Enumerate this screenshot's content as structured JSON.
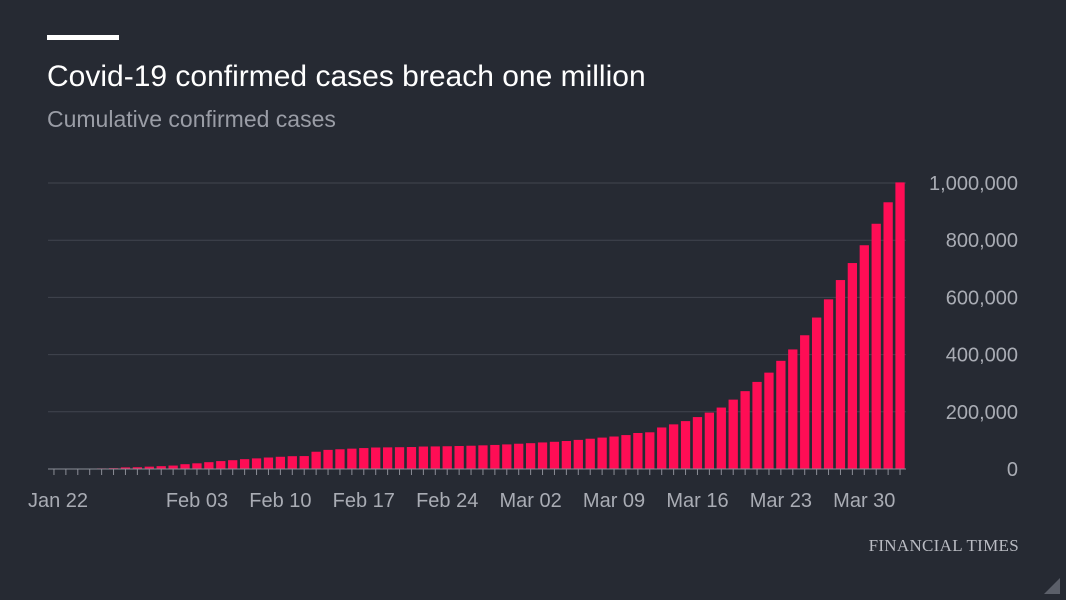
{
  "header": {
    "title": "Covid-19 confirmed cases breach one million",
    "subtitle": "Cumulative confirmed cases"
  },
  "source": "FINANCIAL TIMES",
  "colors": {
    "background": "#262a33",
    "bar": "#ff0d55",
    "grid": "#41454f",
    "text": "#ffffff",
    "muted": "#9a9da6"
  },
  "chart_data": {
    "type": "bar",
    "title": "Covid-19 confirmed cases breach one million",
    "subtitle": "Cumulative confirmed cases",
    "xlabel": "",
    "ylabel": "",
    "ylim": [
      0,
      1000000
    ],
    "yticks": [
      0,
      200000,
      400000,
      600000,
      800000,
      1000000
    ],
    "ytick_labels": [
      "0",
      "200,000",
      "400,000",
      "600,000",
      "800,000",
      "1,000,000"
    ],
    "y_axis_side": "right",
    "grid": true,
    "categories": [
      "Jan 22",
      "Jan 23",
      "Jan 24",
      "Jan 25",
      "Jan 26",
      "Jan 27",
      "Jan 28",
      "Jan 29",
      "Jan 30",
      "Jan 31",
      "Feb 01",
      "Feb 02",
      "Feb 03",
      "Feb 04",
      "Feb 05",
      "Feb 06",
      "Feb 07",
      "Feb 08",
      "Feb 09",
      "Feb 10",
      "Feb 11",
      "Feb 12",
      "Feb 13",
      "Feb 14",
      "Feb 15",
      "Feb 16",
      "Feb 17",
      "Feb 18",
      "Feb 19",
      "Feb 20",
      "Feb 21",
      "Feb 22",
      "Feb 23",
      "Feb 24",
      "Feb 25",
      "Feb 26",
      "Feb 27",
      "Feb 28",
      "Feb 29",
      "Mar 01",
      "Mar 02",
      "Mar 03",
      "Mar 04",
      "Mar 05",
      "Mar 06",
      "Mar 07",
      "Mar 08",
      "Mar 09",
      "Mar 10",
      "Mar 11",
      "Mar 12",
      "Mar 13",
      "Mar 14",
      "Mar 15",
      "Mar 16",
      "Mar 17",
      "Mar 18",
      "Mar 19",
      "Mar 20",
      "Mar 21",
      "Mar 22",
      "Mar 23",
      "Mar 24",
      "Mar 25",
      "Mar 26",
      "Mar 27",
      "Mar 28",
      "Mar 29",
      "Mar 30",
      "Mar 31",
      "Apr 01",
      "Apr 02"
    ],
    "xtick_labels": [
      "Jan 22",
      "Feb 03",
      "Feb 10",
      "Feb 17",
      "Feb 24",
      "Mar 02",
      "Mar 09",
      "Mar 16",
      "Mar 23",
      "Mar 30"
    ],
    "values": [
      555,
      654,
      941,
      1434,
      2118,
      2927,
      5578,
      6166,
      8234,
      9927,
      12038,
      16787,
      19881,
      23892,
      27635,
      30794,
      34391,
      37120,
      40150,
      42762,
      44802,
      45221,
      60368,
      66885,
      69030,
      71224,
      73258,
      75136,
      75639,
      76197,
      76819,
      78572,
      78958,
      79561,
      80406,
      81388,
      82746,
      84112,
      86011,
      88369,
      90306,
      92840,
      95120,
      97886,
      101801,
      105847,
      109821,
      113590,
      118620,
      125875,
      128352,
      145205,
      156101,
      167454,
      181574,
      197102,
      214821,
      242570,
      272208,
      304507,
      336953,
      378235,
      418045,
      467653,
      529591,
      593291,
      660706,
      720117,
      782365,
      857487,
      932605,
      1002159
    ]
  }
}
